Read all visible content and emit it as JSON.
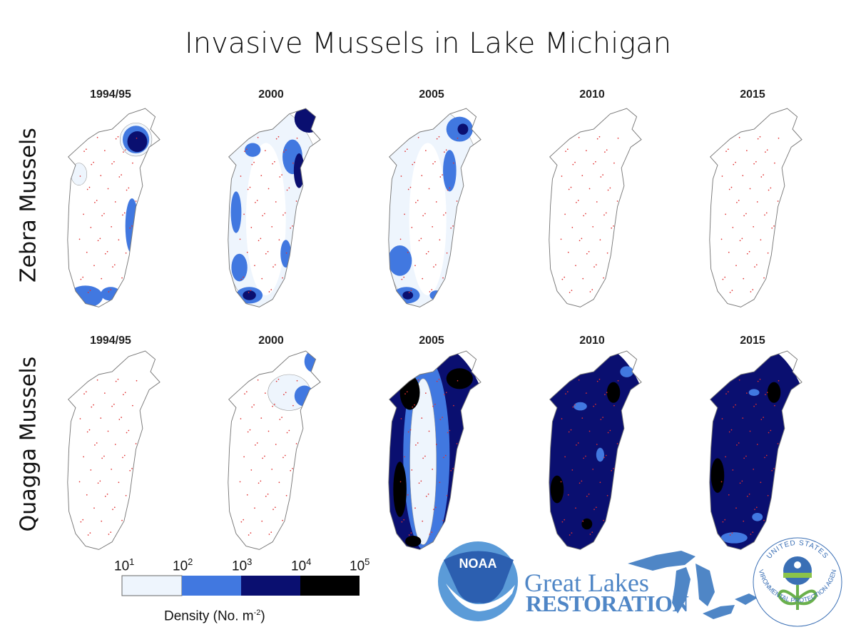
{
  "title": "Invasive Mussels in Lake Michigan",
  "rows": [
    {
      "label": "Zebra Mussels",
      "years": [
        "1994/95",
        "2000",
        "2005",
        "2010",
        "2015"
      ]
    },
    {
      "label": "Quagga Mussels",
      "years": [
        "1994/95",
        "2000",
        "2005",
        "2010",
        "2015"
      ]
    }
  ],
  "legend": {
    "ticks": [
      {
        "base": "10",
        "exp": "1"
      },
      {
        "base": "10",
        "exp": "2"
      },
      {
        "base": "10",
        "exp": "3"
      },
      {
        "base": "10",
        "exp": "4"
      },
      {
        "base": "10",
        "exp": "5"
      }
    ],
    "label": "Density (No. m",
    "label_exp": "-2",
    "label_end": ")",
    "colors": [
      "#eef5fd",
      "#4178e0",
      "#0a0f70",
      "#000000"
    ]
  },
  "logos": {
    "noaa": "NOAA",
    "glr_line1": "Great Lakes",
    "glr_line2": "RESTORATION",
    "epa_top": "UNITED STATES",
    "epa_bottom": "ENVIRONMENTAL PROTECTION AGENCY"
  },
  "colors": {
    "light": "#eef5fd",
    "mid": "#4178e0",
    "dark": "#0a0f70",
    "black": "#000000",
    "station": "#e03030",
    "outline": "#777777"
  }
}
